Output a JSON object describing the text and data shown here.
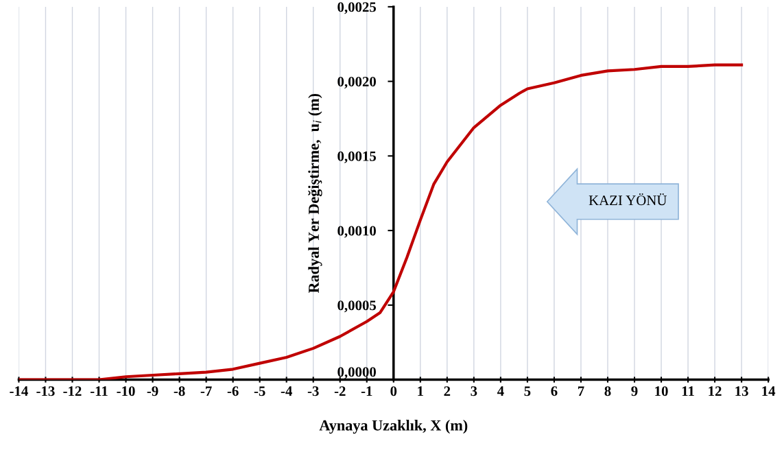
{
  "chart_data": {
    "type": "line",
    "xlabel": "Aynaya Uzaklık, X (m)",
    "ylabel": "Radyal Yer Değiştirme,  u$_{i}$ (m)",
    "x": [
      -14,
      -13,
      -12,
      -11,
      -10,
      -9,
      -8,
      -7,
      -6,
      -5,
      -4,
      -3,
      -2,
      -1,
      -0.5,
      0,
      0.5,
      1,
      1.5,
      2,
      3,
      4,
      4.7,
      5,
      6,
      7,
      8,
      9,
      10,
      11,
      12,
      13
    ],
    "series": [
      {
        "color": "#c00000",
        "values": [
          0.0,
          0.0,
          0.0,
          0.0,
          2e-05,
          3e-05,
          4e-05,
          5e-05,
          7e-05,
          0.00011,
          0.00015,
          0.00021,
          0.00029,
          0.00039,
          0.00045,
          0.00059,
          0.00082,
          0.00107,
          0.00131,
          0.00146,
          0.00169,
          0.00184,
          0.00192,
          0.00195,
          0.00199,
          0.00204,
          0.00207,
          0.00208,
          0.0021,
          0.0021,
          0.00211,
          0.00211
        ]
      }
    ],
    "xlim": [
      -14,
      14
    ],
    "xticks": [
      -14,
      -13,
      -12,
      -11,
      -10,
      -9,
      -8,
      -7,
      -6,
      -5,
      -4,
      -3,
      -2,
      -1,
      0,
      1,
      2,
      3,
      4,
      5,
      6,
      7,
      8,
      9,
      10,
      11,
      12,
      13,
      14
    ],
    "ylim": [
      0,
      0.0025
    ],
    "yticks": [
      {
        "value": 0,
        "label": "0,0000"
      },
      {
        "value": 0.0005,
        "label": "0,0005"
      },
      {
        "value": 0.001,
        "label": "0,0010"
      },
      {
        "value": 0.0015,
        "label": "0,0015"
      },
      {
        "value": 0.002,
        "label": "0,0020"
      },
      {
        "value": 0.0025,
        "label": "0,0025"
      }
    ],
    "grid": "x",
    "annotations": [
      "KAZI YÖNÜ"
    ]
  }
}
